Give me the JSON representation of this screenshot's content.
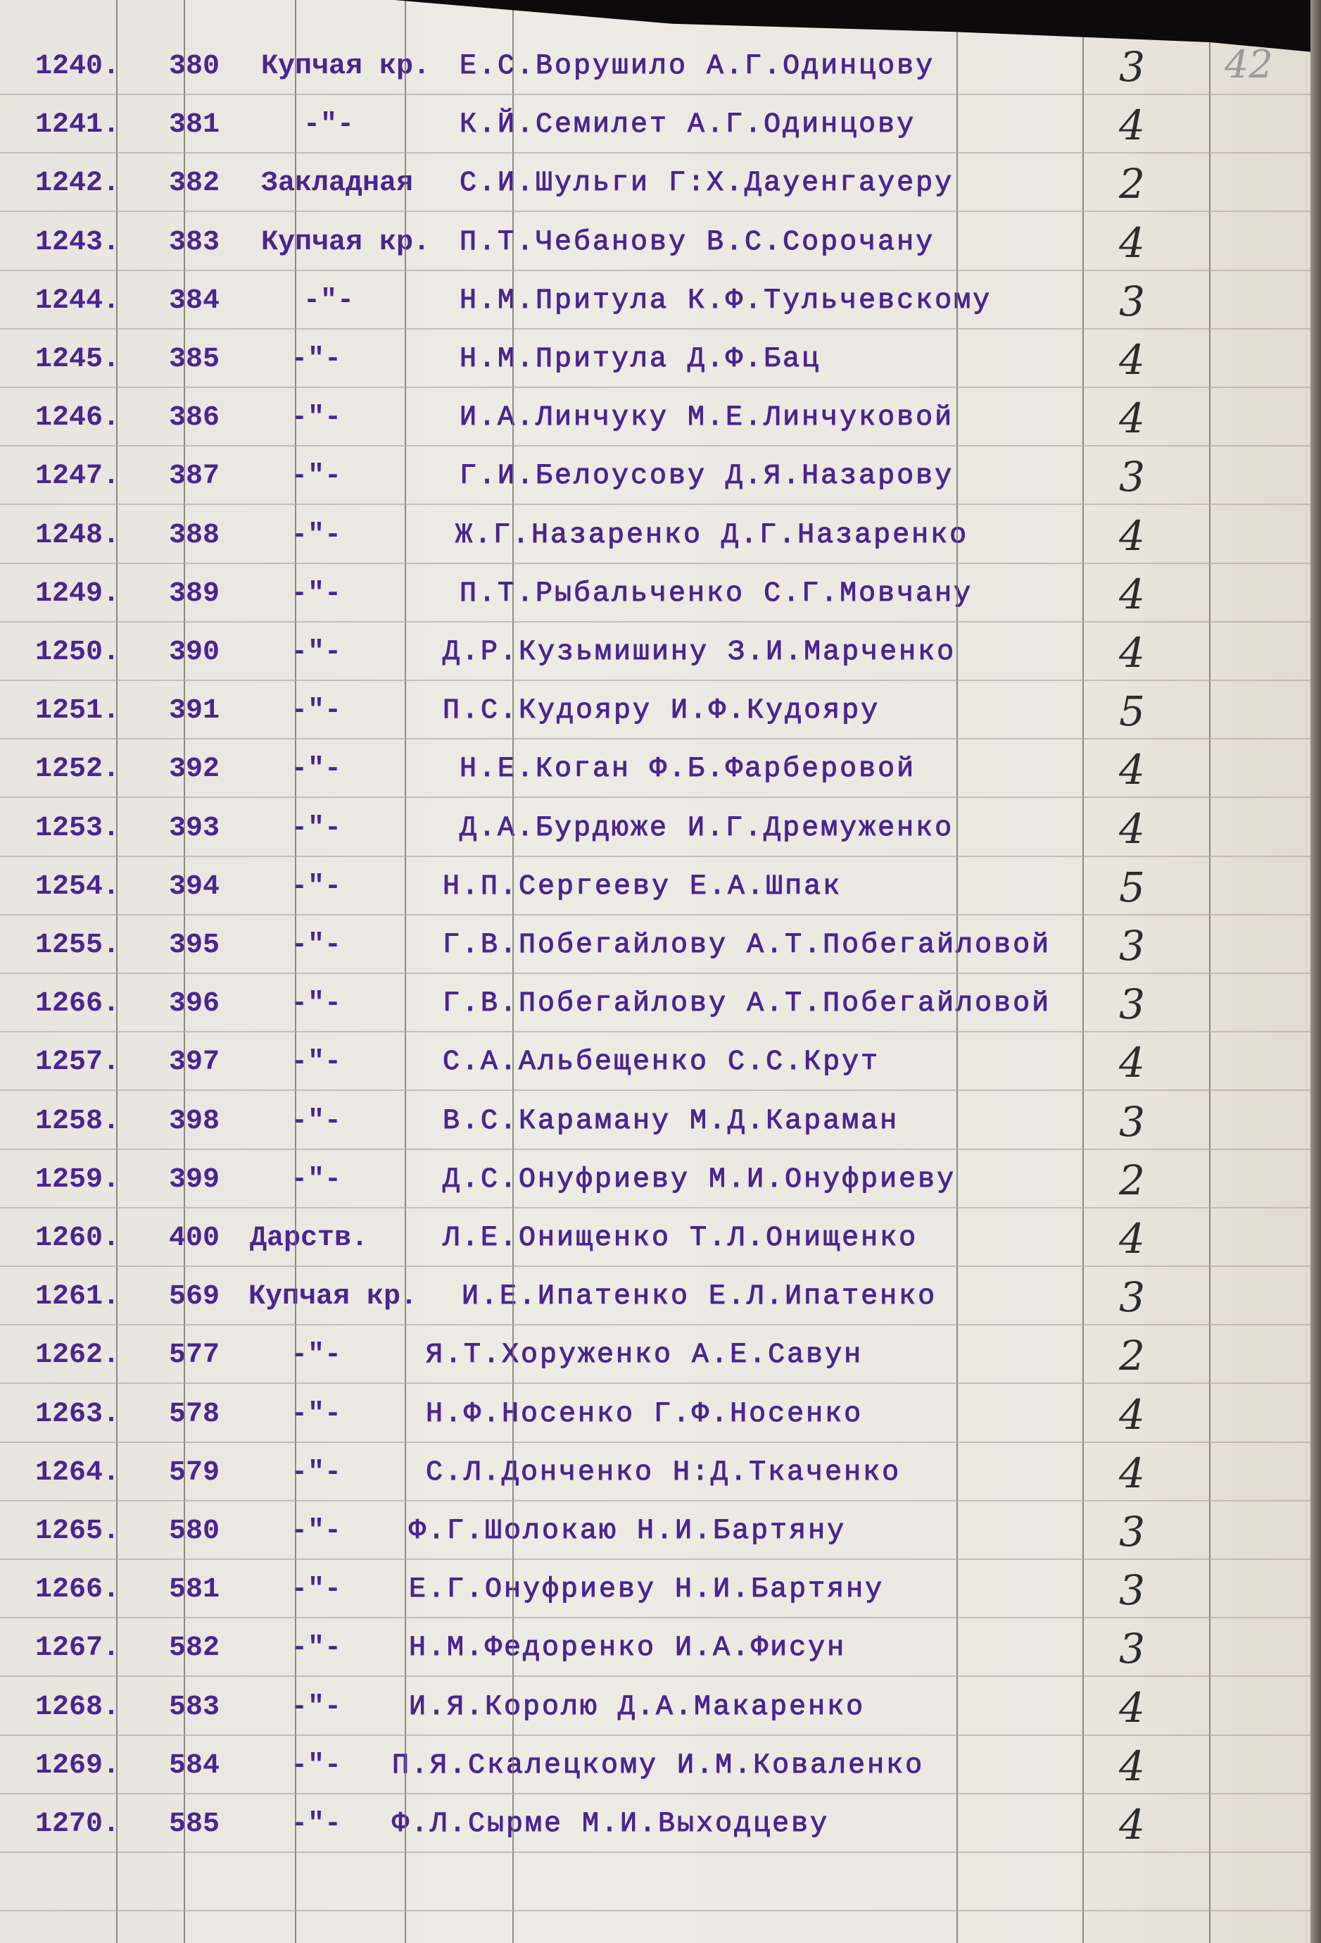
{
  "page_number": "42",
  "rows": [
    {
      "num": "1240.",
      "reg": "380",
      "type": "Купчая кр.",
      "names": "Е.С.Ворушило А.Г.Одинцову",
      "count": "3"
    },
    {
      "num": "1241.",
      "reg": "381",
      "type": "-\"-",
      "names": "К.Й.Семилет А.Г.Одинцову",
      "count": "4"
    },
    {
      "num": "1242.",
      "reg": "382",
      "type": "Закладная",
      "names": "С.И.Шульги Г:Х.Дауенгауеру",
      "count": "2"
    },
    {
      "num": "1243.",
      "reg": "383",
      "type": "Купчая кр.",
      "names": "П.Т.Чебанову В.С.Сорочану",
      "count": "4"
    },
    {
      "num": "1244.",
      "reg": "384",
      "type": "-\"-",
      "names": "Н.М.Притула К.Ф.Тульчевскому",
      "count": "3"
    },
    {
      "num": "1245.",
      "reg": "385",
      "type": "-\"-",
      "names": "Н.М.Притула Д.Ф.Бац",
      "count": "4"
    },
    {
      "num": "1246.",
      "reg": "386",
      "type": "-\"-",
      "names": "И.А.Линчуку М.Е.Линчуковой",
      "count": "4"
    },
    {
      "num": "1247.",
      "reg": "387",
      "type": "-\"-",
      "names": "Г.И.Белоусову Д.Я.Назарову",
      "count": "3"
    },
    {
      "num": "1248.",
      "reg": "388",
      "type": "-\"-",
      "names": "Ж.Г.Назаренко Д.Г.Назаренко",
      "count": "4"
    },
    {
      "num": "1249.",
      "reg": "389",
      "type": "-\"-",
      "names": "П.Т.Рыбальченко С.Г.Мовчану",
      "count": "4"
    },
    {
      "num": "1250.",
      "reg": "390",
      "type": "-\"-",
      "names": "Д.Р.Кузьмишину З.И.Марченко",
      "count": "4"
    },
    {
      "num": "1251.",
      "reg": "391",
      "type": "-\"-",
      "names": "П.С.Кудояру И.Ф.Кудояру",
      "count": "5"
    },
    {
      "num": "1252.",
      "reg": "392",
      "type": "-\"-",
      "names": "Н.Е.Коган Ф.Б.Фарберовой",
      "count": "4"
    },
    {
      "num": "1253.",
      "reg": "393",
      "type": "-\"-",
      "names": "Д.А.Бурдюже И.Г.Дремуженко",
      "count": "4"
    },
    {
      "num": "1254.",
      "reg": "394",
      "type": "-\"-",
      "names": "Н.П.Сергееву Е.А.Шпак",
      "count": "5"
    },
    {
      "num": "1255.",
      "reg": "395",
      "type": "-\"-",
      "names": "Г.В.Побегайлову А.Т.Побегайловой",
      "count": "3"
    },
    {
      "num": "1266.",
      "reg": "396",
      "type": "-\"-",
      "names": "Г.В.Побегайлову А.Т.Побегайловой",
      "count": "3"
    },
    {
      "num": "1257.",
      "reg": "397",
      "type": "-\"-",
      "names": "С.А.Альбещенко С.С.Крут",
      "count": "4"
    },
    {
      "num": "1258.",
      "reg": "398",
      "type": "-\"-",
      "names": "В.С.Караману М.Д.Караман",
      "count": "3"
    },
    {
      "num": "1259.",
      "reg": "399",
      "type": "-\"-",
      "names": "Д.С.Онуфриеву М.И.Онуфриеву",
      "count": "2"
    },
    {
      "num": "1260.",
      "reg": "400",
      "type": "Дарств.",
      "names": "Л.Е.Онищенко Т.Л.Онищенко",
      "count": "4"
    },
    {
      "num": "1261.",
      "reg": "569",
      "type": "Купчая кр.",
      "names": "И.Е.Ипатенко Е.Л.Ипатенко",
      "count": "3"
    },
    {
      "num": "1262.",
      "reg": "577",
      "type": "-\"-",
      "names": "Я.Т.Хоруженко А.Е.Савун",
      "count": "2"
    },
    {
      "num": "1263.",
      "reg": "578",
      "type": "-\"-",
      "names": "Н.Ф.Носенко Г.Ф.Носенко",
      "count": "4"
    },
    {
      "num": "1264.",
      "reg": "579",
      "type": "-\"-",
      "names": "С.Л.Донченко Н:Д.Ткаченко",
      "count": "4"
    },
    {
      "num": "1265.",
      "reg": "580",
      "type": "-\"-",
      "names": "Ф.Г.Шолокаю Н.И.Бартяну",
      "count": "3"
    },
    {
      "num": "1266.",
      "reg": "581",
      "type": "-\"-",
      "names": "Е.Г.Онуфриеву Н.И.Бартяну",
      "count": "3"
    },
    {
      "num": "1267.",
      "reg": "582",
      "type": "-\"-",
      "names": "Н.М.Федоренко И.А.Фисун",
      "count": "3"
    },
    {
      "num": "1268.",
      "reg": "583",
      "type": "-\"-",
      "names": "И.Я.Королю Д.А.Макаренко",
      "count": "4"
    },
    {
      "num": "1269.",
      "reg": "584",
      "type": "-\"-",
      "names": "П.Я.Скалецкому И.М.Коваленко",
      "count": "4"
    },
    {
      "num": "1270.",
      "reg": "585",
      "type": "-\"-",
      "names": "Ф.Л.Сырме М.И.Выходцеву",
      "count": "4"
    }
  ]
}
